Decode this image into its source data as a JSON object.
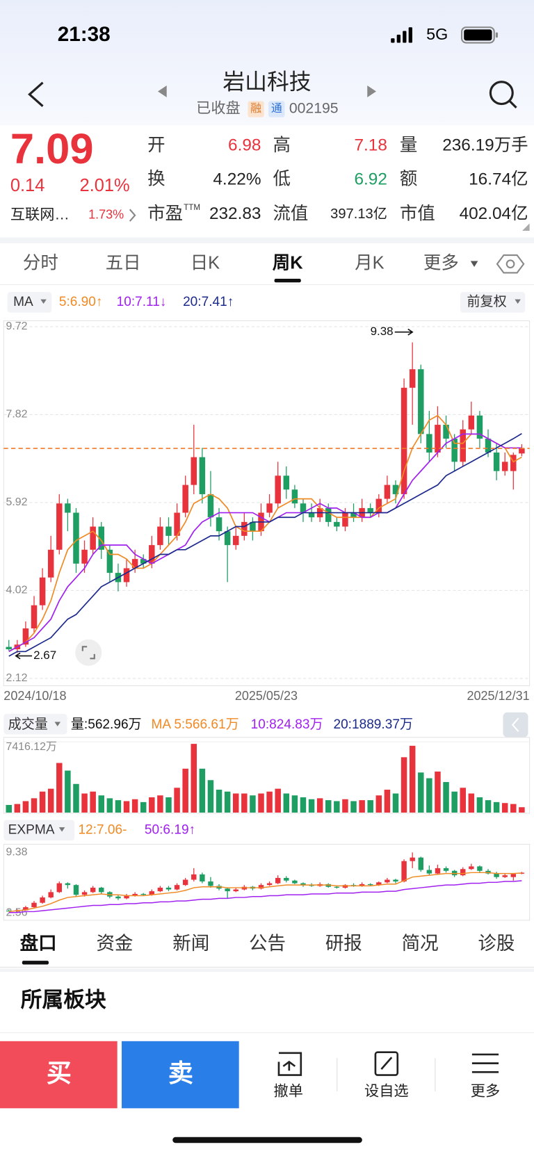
{
  "status": {
    "time": "21:38",
    "network": "5G"
  },
  "header": {
    "title": "岩山科技",
    "status": "已收盘",
    "badges": [
      "融",
      "通"
    ],
    "code": "002195"
  },
  "quote": {
    "price": "7.09",
    "change": "0.14",
    "pct": "2.01%",
    "sector": "互联网…",
    "sector_pct": "1.73%",
    "pe_sup": "TTM",
    "fields": [
      [
        "开",
        "6.98"
      ],
      [
        "高",
        "7.18"
      ],
      [
        "量",
        "236.19万手"
      ],
      [
        "换",
        "4.22%"
      ],
      [
        "低",
        "6.92"
      ],
      [
        "额",
        "16.74亿"
      ],
      [
        "市盈",
        "232.83"
      ],
      [
        "流值",
        "397.13亿"
      ],
      [
        "市值",
        "402.04亿"
      ]
    ]
  },
  "tabs": [
    "分时",
    "五日",
    "日K",
    "周K",
    "月K",
    "更多"
  ],
  "ma_legend": {
    "name": "MA",
    "ma5": "5:6.90↑",
    "ma10": "10:7.11↓",
    "ma20": "20:7.41↑",
    "adjust": "前复权"
  },
  "chart_data": {
    "type": "candlestick",
    "up_color": "#e8333d",
    "down_color": "#1f9e63",
    "ylim": [
      2.12,
      9.72
    ],
    "yticks": [
      9.72,
      7.82,
      5.92,
      4.02,
      2.12
    ],
    "grid": true,
    "x_labels": [
      "2024/10/18",
      "2025/05/23",
      "2025/12/31"
    ],
    "candles": [
      [
        2.8,
        2.95,
        2.72,
        2.75
      ],
      [
        2.75,
        2.95,
        2.67,
        2.85
      ],
      [
        2.85,
        3.35,
        2.8,
        3.2
      ],
      [
        3.2,
        3.9,
        3.1,
        3.7
      ],
      [
        3.7,
        4.5,
        3.6,
        4.3
      ],
      [
        4.3,
        5.2,
        4.2,
        4.9
      ],
      [
        4.9,
        6.1,
        4.8,
        5.9
      ],
      [
        5.9,
        6.0,
        5.3,
        5.7
      ],
      [
        5.7,
        5.8,
        4.4,
        4.6
      ],
      [
        4.6,
        5.1,
        4.4,
        4.9
      ],
      [
        4.9,
        5.6,
        4.8,
        5.4
      ],
      [
        5.4,
        5.5,
        4.7,
        4.9
      ],
      [
        4.9,
        5.0,
        4.2,
        4.4
      ],
      [
        4.4,
        4.6,
        4.0,
        4.2
      ],
      [
        4.2,
        4.7,
        4.1,
        4.5
      ],
      [
        4.5,
        4.9,
        4.4,
        4.7
      ],
      [
        4.7,
        4.8,
        4.5,
        4.6
      ],
      [
        4.6,
        5.2,
        4.5,
        5.0
      ],
      [
        5.0,
        5.6,
        4.9,
        5.4
      ],
      [
        5.4,
        5.6,
        5.0,
        5.2
      ],
      [
        5.2,
        5.9,
        5.1,
        5.7
      ],
      [
        5.7,
        6.5,
        5.6,
        6.3
      ],
      [
        6.3,
        7.6,
        6.1,
        6.9
      ],
      [
        6.9,
        7.1,
        5.9,
        6.1
      ],
      [
        6.1,
        6.6,
        5.4,
        5.6
      ],
      [
        5.6,
        5.8,
        5.1,
        5.3
      ],
      [
        5.3,
        5.4,
        4.2,
        5.0
      ],
      [
        5.0,
        5.4,
        4.9,
        5.2
      ],
      [
        5.2,
        5.7,
        5.1,
        5.5
      ],
      [
        5.5,
        5.6,
        5.1,
        5.3
      ],
      [
        5.3,
        5.9,
        5.2,
        5.7
      ],
      [
        5.7,
        6.1,
        5.6,
        5.9
      ],
      [
        5.9,
        6.8,
        5.8,
        6.5
      ],
      [
        6.5,
        6.7,
        6.0,
        6.2
      ],
      [
        6.2,
        6.3,
        5.8,
        5.9
      ],
      [
        5.9,
        6.0,
        5.5,
        5.7
      ],
      [
        5.7,
        5.9,
        5.5,
        5.6
      ],
      [
        5.6,
        6.0,
        5.5,
        5.8
      ],
      [
        5.8,
        5.9,
        5.4,
        5.5
      ],
      [
        5.5,
        5.6,
        5.3,
        5.4
      ],
      [
        5.4,
        5.8,
        5.3,
        5.7
      ],
      [
        5.7,
        5.9,
        5.5,
        5.6
      ],
      [
        5.6,
        6.0,
        5.5,
        5.8
      ],
      [
        5.8,
        5.9,
        5.6,
        5.7
      ],
      [
        5.7,
        6.1,
        5.6,
        6.0
      ],
      [
        6.0,
        6.5,
        5.9,
        6.3
      ],
      [
        6.3,
        6.4,
        5.9,
        6.1
      ],
      [
        6.1,
        8.6,
        6.0,
        8.4
      ],
      [
        8.4,
        9.38,
        7.6,
        8.8
      ],
      [
        8.8,
        8.9,
        7.2,
        7.4
      ],
      [
        7.4,
        7.9,
        6.8,
        7.0
      ],
      [
        7.0,
        8.0,
        6.9,
        7.6
      ],
      [
        7.6,
        7.8,
        7.1,
        7.3
      ],
      [
        7.3,
        7.4,
        6.6,
        6.8
      ],
      [
        6.8,
        7.7,
        6.7,
        7.5
      ],
      [
        7.5,
        8.1,
        7.4,
        7.8
      ],
      [
        7.8,
        7.9,
        7.1,
        7.3
      ],
      [
        7.3,
        7.5,
        6.9,
        7.0
      ],
      [
        7.0,
        7.2,
        6.4,
        6.6
      ],
      [
        6.6,
        7.0,
        6.5,
        6.8
      ],
      [
        6.6,
        7.0,
        6.2,
        6.95
      ],
      [
        6.98,
        7.18,
        6.92,
        7.09
      ]
    ],
    "series": [
      {
        "name": "MA5",
        "color": "#f08a24",
        "values": [
          2.7,
          2.8,
          2.9,
          3.1,
          3.4,
          3.8,
          4.4,
          4.9,
          5.1,
          5.2,
          5.3,
          5.1,
          4.8,
          4.8,
          4.7,
          4.5,
          4.5,
          4.6,
          4.8,
          5.0,
          5.2,
          5.5,
          5.9,
          6.0,
          6.1,
          6.0,
          5.8,
          5.4,
          5.3,
          5.3,
          5.3,
          5.5,
          5.8,
          5.9,
          6.0,
          6.0,
          6.0,
          5.8,
          5.7,
          5.6,
          5.6,
          5.6,
          5.6,
          5.6,
          5.8,
          5.9,
          6.0,
          6.6,
          7.1,
          7.4,
          7.7,
          7.8,
          7.6,
          7.2,
          7.2,
          7.4,
          7.4,
          7.3,
          7.2,
          7.1,
          6.8,
          6.9
        ]
      },
      {
        "name": "MA10",
        "color": "#a020f0",
        "values": [
          2.7,
          2.8,
          2.9,
          3.0,
          3.2,
          3.4,
          3.8,
          4.1,
          4.3,
          4.5,
          4.8,
          5.0,
          5.0,
          5.0,
          5.0,
          4.8,
          4.7,
          4.6,
          4.7,
          4.8,
          4.9,
          5.0,
          5.3,
          5.5,
          5.6,
          5.7,
          5.7,
          5.7,
          5.7,
          5.7,
          5.6,
          5.5,
          5.6,
          5.7,
          5.7,
          5.7,
          5.8,
          5.9,
          5.8,
          5.8,
          5.7,
          5.7,
          5.6,
          5.6,
          5.7,
          5.7,
          5.8,
          6.1,
          6.4,
          6.6,
          6.8,
          7.0,
          7.2,
          7.3,
          7.4,
          7.4,
          7.4,
          7.3,
          7.2,
          7.1,
          7.1,
          7.1
        ]
      },
      {
        "name": "MA20",
        "color": "#1c2a8c",
        "values": [
          2.6,
          2.7,
          2.7,
          2.8,
          2.9,
          3.0,
          3.2,
          3.4,
          3.5,
          3.7,
          3.9,
          4.1,
          4.2,
          4.3,
          4.4,
          4.5,
          4.6,
          4.7,
          4.8,
          4.8,
          4.9,
          4.9,
          5.0,
          5.1,
          5.2,
          5.2,
          5.3,
          5.4,
          5.4,
          5.5,
          5.5,
          5.5,
          5.6,
          5.6,
          5.6,
          5.7,
          5.7,
          5.7,
          5.7,
          5.7,
          5.7,
          5.7,
          5.7,
          5.7,
          5.7,
          5.7,
          5.8,
          5.9,
          6.0,
          6.1,
          6.2,
          6.3,
          6.5,
          6.6,
          6.7,
          6.8,
          6.9,
          7.0,
          7.1,
          7.2,
          7.3,
          7.41
        ]
      }
    ]
  },
  "volume": {
    "name": "成交量",
    "current": "量:562.96万",
    "ma5": "MA 5:566.61万",
    "ma10": "10:824.83万",
    "ma20": "20:1889.37万",
    "ylim": [
      0,
      7416.12
    ],
    "yticks": [
      {
        "value": 7416.12,
        "label": "7416.12万"
      }
    ],
    "values": [
      800,
      900,
      1200,
      1500,
      2200,
      2500,
      5200,
      4400,
      3000,
      2000,
      2200,
      1800,
      1500,
      1300,
      1200,
      1400,
      1100,
      1600,
      1800,
      1600,
      2600,
      4600,
      7200,
      4600,
      3400,
      2400,
      2200,
      2000,
      2000,
      1800,
      2000,
      2200,
      2500,
      2000,
      1800,
      1600,
      1400,
      1500,
      1300,
      1200,
      1400,
      1200,
      1300,
      1300,
      1800,
      2400,
      2000,
      5800,
      7000,
      4200,
      3600,
      4300,
      3200,
      2200,
      2600,
      2000,
      1600,
      1300,
      1100,
      1000,
      900,
      562.96
    ]
  },
  "expma": {
    "name": "EXPMA",
    "e12": "12:7.06-",
    "e50": "50:6.19↑",
    "ylim": [
      2.56,
      9.38
    ],
    "yticks": [
      9.38,
      2.56
    ],
    "ema12": [
      2.7,
      2.8,
      2.9,
      3.1,
      3.3,
      3.6,
      4.0,
      4.3,
      4.4,
      4.5,
      4.6,
      4.7,
      4.6,
      4.6,
      4.5,
      4.5,
      4.5,
      4.6,
      4.7,
      4.8,
      4.9,
      5.1,
      5.4,
      5.5,
      5.5,
      5.5,
      5.4,
      5.4,
      5.4,
      5.4,
      5.4,
      5.5,
      5.6,
      5.7,
      5.7,
      5.7,
      5.7,
      5.7,
      5.7,
      5.6,
      5.6,
      5.6,
      5.6,
      5.6,
      5.7,
      5.8,
      5.8,
      6.2,
      6.6,
      6.7,
      6.8,
      6.9,
      7.0,
      7.0,
      7.0,
      7.1,
      7.1,
      7.1,
      7.0,
      7.0,
      7.0,
      7.06
    ],
    "ema50": [
      2.6,
      2.6,
      2.7,
      2.7,
      2.8,
      2.9,
      3.0,
      3.1,
      3.2,
      3.3,
      3.4,
      3.4,
      3.5,
      3.5,
      3.6,
      3.6,
      3.7,
      3.7,
      3.8,
      3.8,
      3.9,
      3.9,
      4.0,
      4.1,
      4.1,
      4.2,
      4.2,
      4.3,
      4.3,
      4.4,
      4.4,
      4.5,
      4.5,
      4.6,
      4.6,
      4.6,
      4.7,
      4.7,
      4.7,
      4.8,
      4.8,
      4.8,
      4.9,
      4.9,
      4.9,
      5.0,
      5.0,
      5.2,
      5.3,
      5.4,
      5.5,
      5.6,
      5.7,
      5.7,
      5.8,
      5.9,
      5.9,
      6.0,
      6.0,
      6.1,
      6.1,
      6.19
    ]
  },
  "sections": [
    "盘口",
    "资金",
    "新闻",
    "公告",
    "研报",
    "简况",
    "诊股"
  ],
  "block_title": "所属板块",
  "actions": {
    "buy": "买",
    "sell": "卖",
    "items": [
      "撤单",
      "设自选",
      "更多"
    ]
  }
}
